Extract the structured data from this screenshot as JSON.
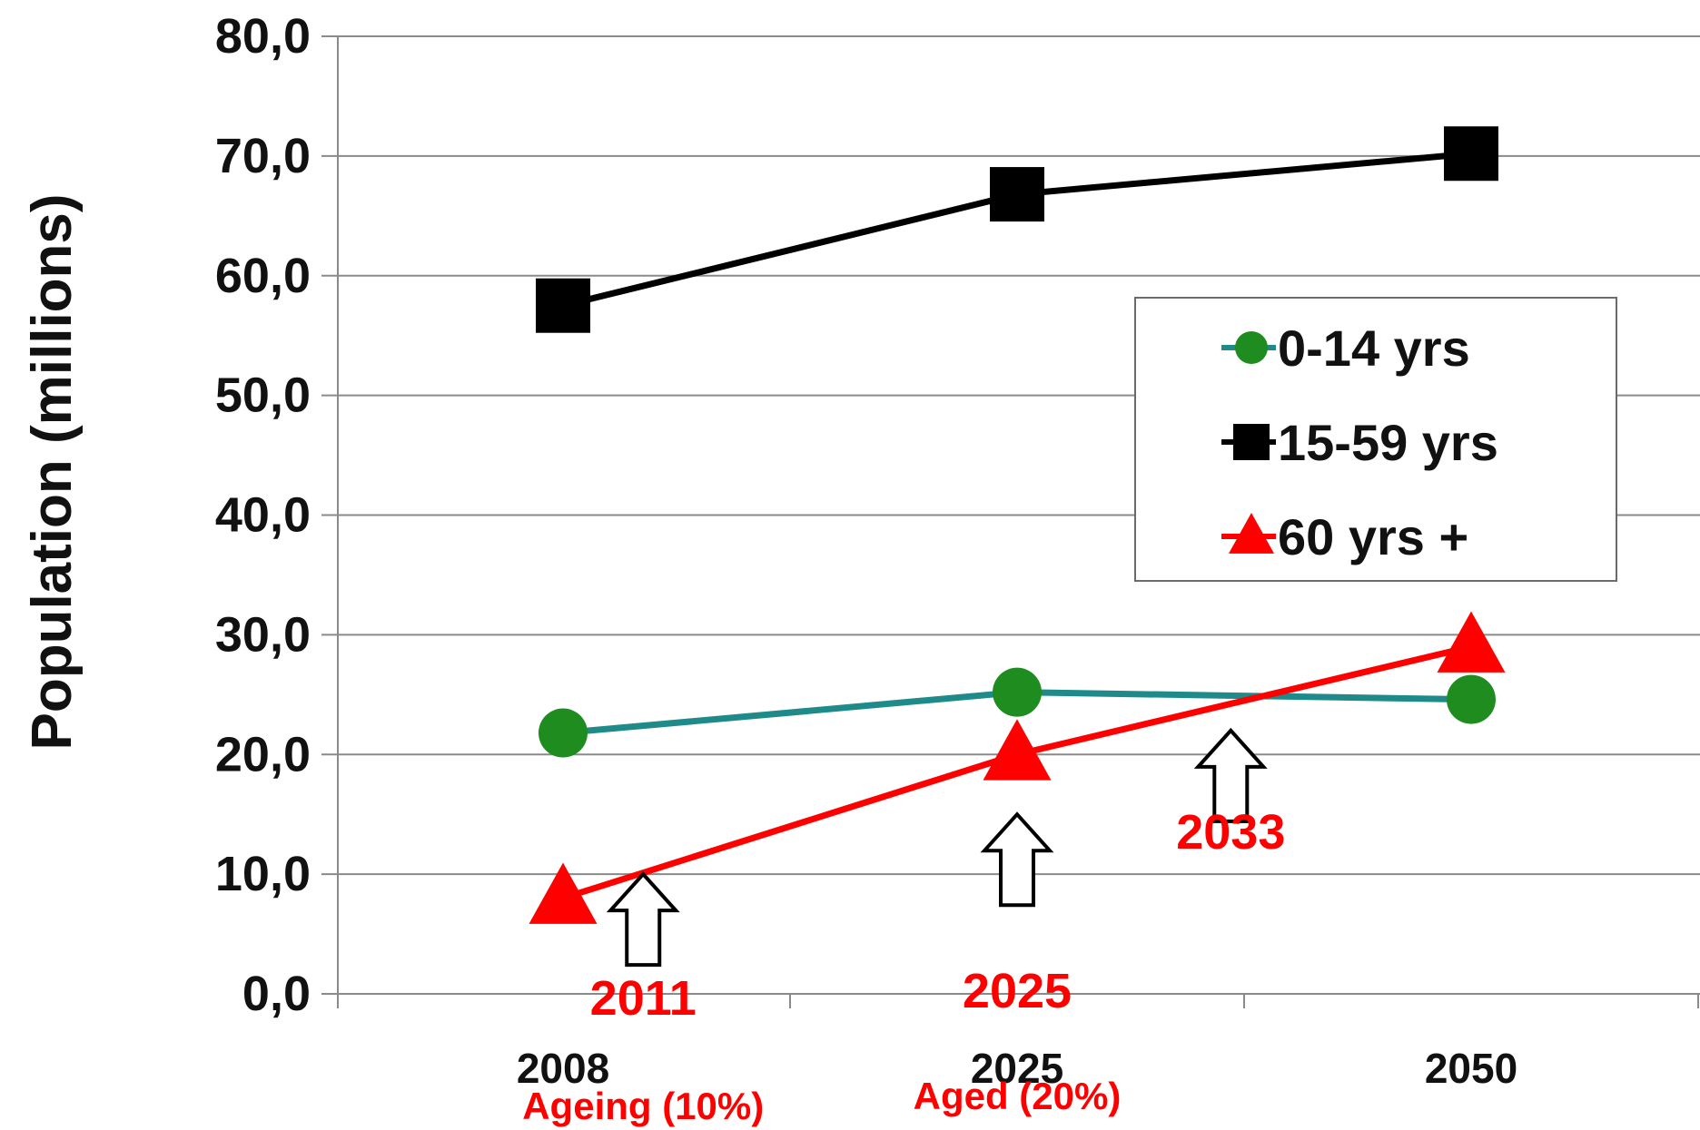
{
  "chart_data": {
    "type": "line",
    "title": "",
    "xlabel": "",
    "ylabel": "Population (millions)",
    "ylim": [
      0,
      80
    ],
    "yticks": [
      "0,0",
      "10,0",
      "20,0",
      "30,0",
      "40,0",
      "50,0",
      "60,0",
      "70,0",
      "80,0"
    ],
    "categories": [
      "2008",
      "2025",
      "2050"
    ],
    "grid": true,
    "legend_position": "center-right",
    "series": [
      {
        "name": "0-14 yrs",
        "values": [
          21.8,
          25.2,
          24.6
        ],
        "color": "#1f8a8a",
        "marker": "circle",
        "marker_color": "#1e8c1e"
      },
      {
        "name": "15-59 yrs",
        "values": [
          57.5,
          66.8,
          70.2
        ],
        "color": "#000000",
        "marker": "square",
        "marker_color": "#000000"
      },
      {
        "name": "60 yrs +",
        "values": [
          8.0,
          20.0,
          29.0
        ],
        "color": "#ff0000",
        "marker": "triangle",
        "marker_color": "#ff0000"
      }
    ],
    "annotations": [
      {
        "year": "2011",
        "label": "Ageing (10%)",
        "x_value": 2011,
        "y_value": 10
      },
      {
        "year": "2025",
        "label": "Aged (20%)",
        "x_value": 2025,
        "y_value": 15
      },
      {
        "year": "2033",
        "label": "",
        "x_value": 2033,
        "y_value": 22
      }
    ]
  }
}
